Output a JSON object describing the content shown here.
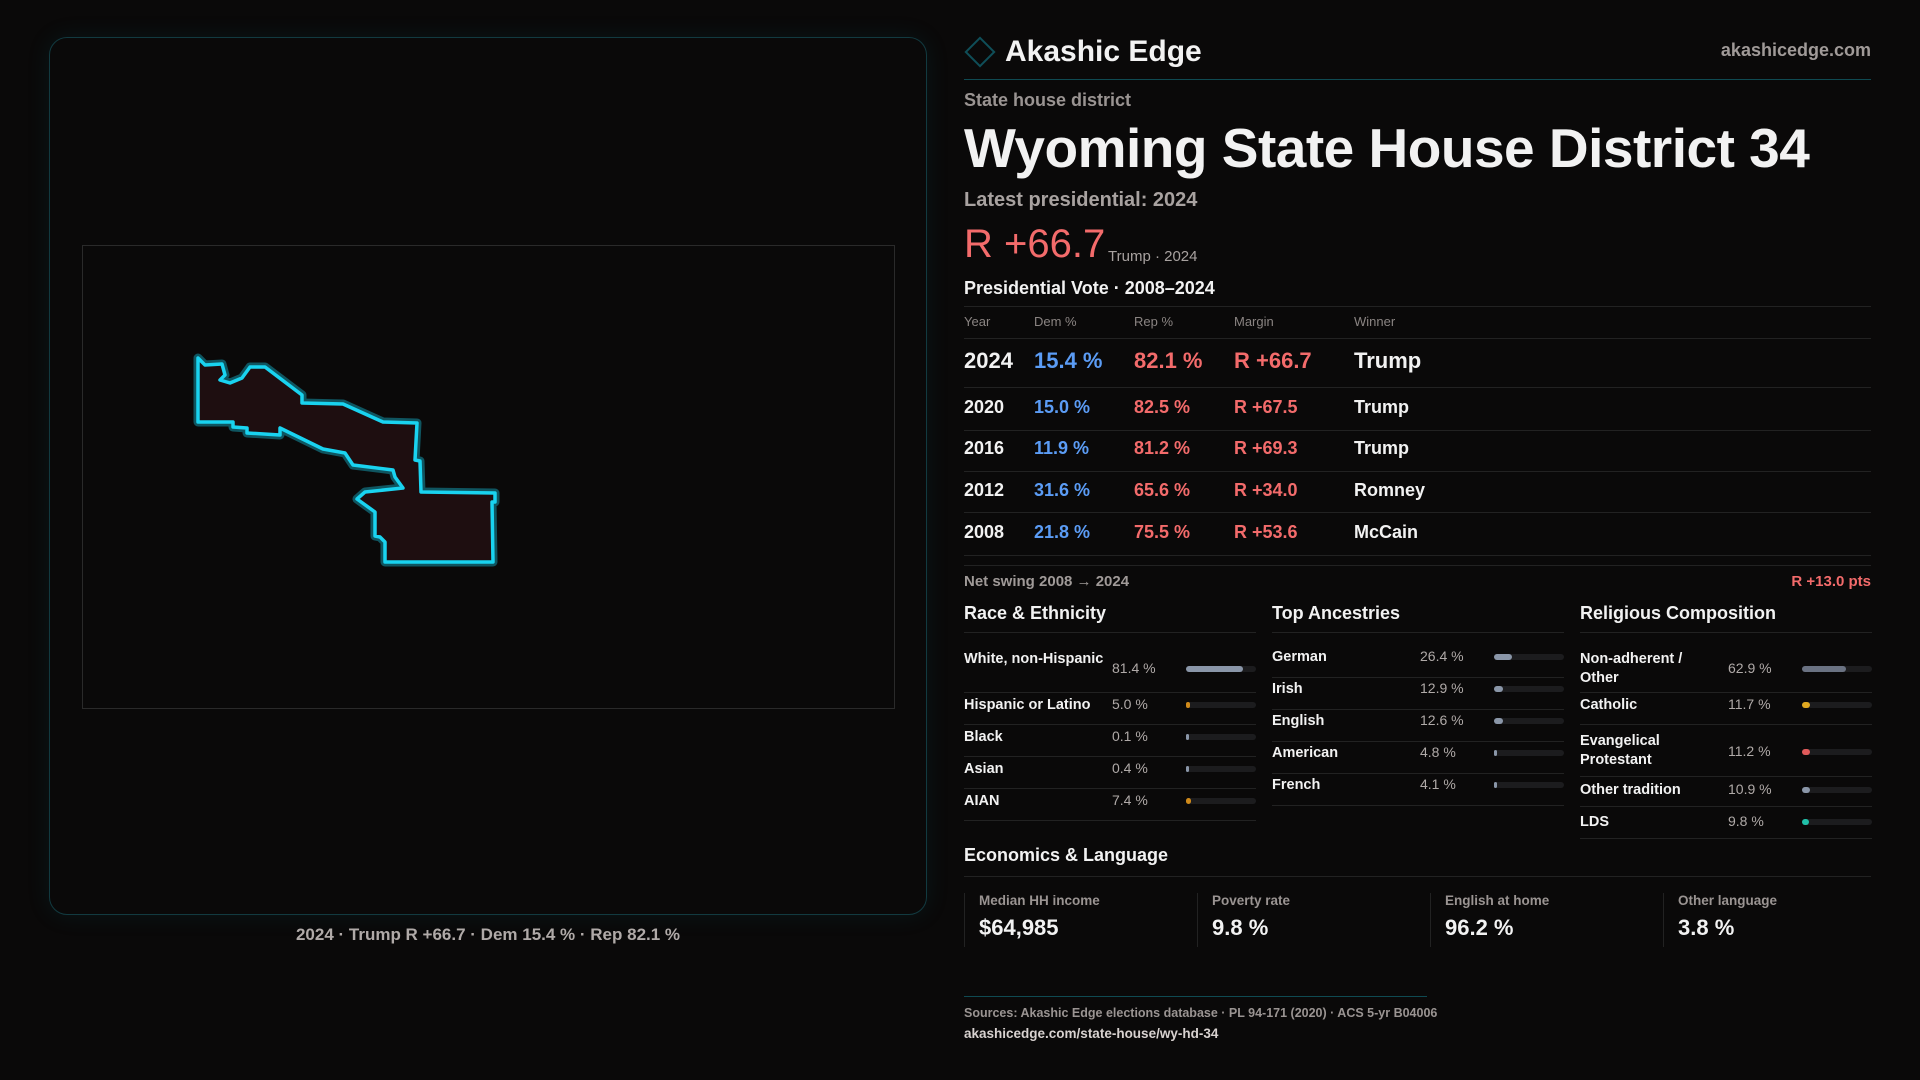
{
  "brand": {
    "name": "Akashic Edge",
    "site": "akashicedge.com",
    "logo_icon": "diamond-icon"
  },
  "header": {
    "kicker": "State house district",
    "title": "Wyoming State House District 34",
    "latest": "Latest presidential: 2024",
    "margin": "R +66.7",
    "margin_sub": "Trump · 2024"
  },
  "map": {
    "caption": "2024 · Trump R +66.7 · Dem 15.4 % · Rep 82.1 %",
    "outline_color": "#19d3f0",
    "fill_color": "#1e0e10"
  },
  "vote_table": {
    "title": "Presidential Vote · 2008–2024",
    "columns": [
      "Year",
      "Dem %",
      "Rep %",
      "Margin",
      "Winner"
    ],
    "rows": [
      {
        "year": "2024",
        "dem": "15.4 %",
        "rep": "82.1 %",
        "margin": "R +66.7",
        "winner": "Trump"
      },
      {
        "year": "2020",
        "dem": "15.0 %",
        "rep": "82.5 %",
        "margin": "R +67.5",
        "winner": "Trump"
      },
      {
        "year": "2016",
        "dem": "11.9 %",
        "rep": "81.2 %",
        "margin": "R +69.3",
        "winner": "Trump"
      },
      {
        "year": "2012",
        "dem": "31.6 %",
        "rep": "65.6 %",
        "margin": "R +34.0",
        "winner": "Romney"
      },
      {
        "year": "2008",
        "dem": "21.8 %",
        "rep": "75.5 %",
        "margin": "R +53.6",
        "winner": "McCain"
      }
    ],
    "swing_label": "Net swing 2008 → 2024",
    "swing_value": "R +13.0 pts"
  },
  "sections": [
    {
      "title": "Race & Ethnicity",
      "items": [
        {
          "label": "White, non-Hispanic",
          "value": "81.4 %",
          "pct": 81.4,
          "color": "#8a96a8"
        },
        {
          "label": "Hispanic or Latino",
          "value": "5.0 %",
          "pct": 5.0,
          "color": "#d08a1a"
        },
        {
          "label": "Black",
          "value": "0.1 %",
          "pct": 0.1,
          "color": "#8a96a8"
        },
        {
          "label": "Asian",
          "value": "0.4 %",
          "pct": 0.4,
          "color": "#8a96a8"
        },
        {
          "label": "AIAN",
          "value": "7.4 %",
          "pct": 7.4,
          "color": "#d08a1a"
        }
      ]
    },
    {
      "title": "Top Ancestries",
      "items": [
        {
          "label": "German",
          "value": "26.4 %",
          "pct": 26.4,
          "color": "#8a96a8"
        },
        {
          "label": "Irish",
          "value": "12.9 %",
          "pct": 12.9,
          "color": "#8a96a8"
        },
        {
          "label": "English",
          "value": "12.6 %",
          "pct": 12.6,
          "color": "#8a96a8"
        },
        {
          "label": "American",
          "value": "4.8 %",
          "pct": 4.8,
          "color": "#8a96a8"
        },
        {
          "label": "French",
          "value": "4.1 %",
          "pct": 4.1,
          "color": "#8a96a8"
        }
      ]
    },
    {
      "title": "Religious Composition",
      "items": [
        {
          "label": "Non-adherent / Other",
          "value": "62.9 %",
          "pct": 62.9,
          "color": "#6a7282"
        },
        {
          "label": "Catholic",
          "value": "11.7 %",
          "pct": 11.7,
          "color": "#e0a820"
        },
        {
          "label": "Evangelical Protestant",
          "value": "11.2 %",
          "pct": 11.2,
          "color": "#e05a5a"
        },
        {
          "label": "Other tradition",
          "value": "10.9 %",
          "pct": 10.9,
          "color": "#8a96a8"
        },
        {
          "label": "LDS",
          "value": "9.8 %",
          "pct": 9.8,
          "color": "#20c0a8"
        }
      ]
    }
  ],
  "economics": {
    "title": "Economics & Language",
    "cards": [
      {
        "label": "Median HH income",
        "value": "$64,985"
      },
      {
        "label": "Poverty rate",
        "value": "9.8 %"
      },
      {
        "label": "English at home",
        "value": "96.2 %"
      },
      {
        "label": "Other language",
        "value": "3.8 %"
      }
    ]
  },
  "footer": {
    "sources": "Sources: Akashic Edge elections database · PL 94-171 (2020) · ACS 5-yr B04006",
    "url": "akashicedge.com/state-house/wy-hd-34"
  }
}
